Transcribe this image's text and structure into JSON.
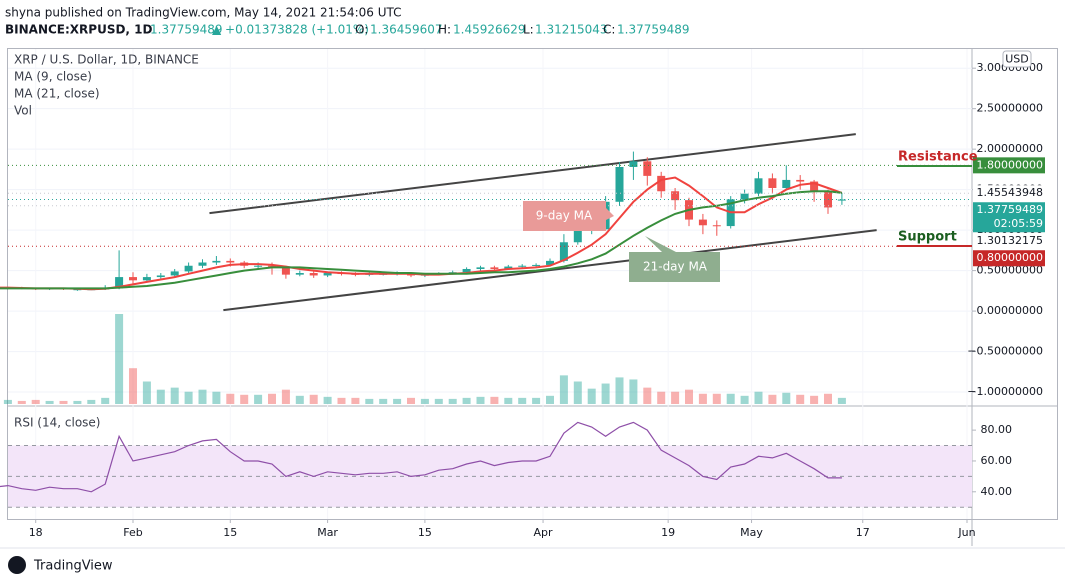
{
  "header": {
    "published": "shyna published on TradingView.com, May 14, 2021 21:54:06 UTC",
    "symbol": "BINANCE:XRPUSD, 1D",
    "price": "1.37759489",
    "change": "▲ +0.01373828 (+1.01%)",
    "ohlc": [
      {
        "label": "O:",
        "value": "1.36459607"
      },
      {
        "label": "H:",
        "value": "1.45926629"
      },
      {
        "label": "L:",
        "value": "1.31215043"
      },
      {
        "label": "C:",
        "value": "1.37759489"
      }
    ],
    "logo": "TradingView"
  },
  "chart_data": {
    "type": "candlestick",
    "title": "XRP / U.S. Dollar, 1D, BINANCE",
    "currency": "USD",
    "x": [
      "01-10",
      "01-12",
      "01-14",
      "01-16",
      "01-18",
      "01-20",
      "01-22",
      "01-24",
      "01-26",
      "01-28",
      "01-30",
      "02-01",
      "02-03",
      "02-05",
      "02-07",
      "02-09",
      "02-11",
      "02-13",
      "02-15",
      "02-17",
      "02-19",
      "02-21",
      "02-23",
      "02-25",
      "02-27",
      "03-01",
      "03-03",
      "03-05",
      "03-07",
      "03-09",
      "03-11",
      "03-13",
      "03-15",
      "03-17",
      "03-19",
      "03-21",
      "03-23",
      "03-25",
      "03-27",
      "03-29",
      "03-31",
      "04-02",
      "04-04",
      "04-06",
      "04-08",
      "04-10",
      "04-12",
      "04-14",
      "04-16",
      "04-18",
      "04-20",
      "04-22",
      "04-24",
      "04-26",
      "04-28",
      "04-30",
      "05-02",
      "05-04",
      "05-06",
      "05-08",
      "05-10",
      "05-12",
      "05-14"
    ],
    "open": [
      0.29,
      0.29,
      0.28,
      0.29,
      0.28,
      0.27,
      0.28,
      0.27,
      0.27,
      0.27,
      0.28,
      0.42,
      0.38,
      0.42,
      0.44,
      0.49,
      0.56,
      0.6,
      0.62,
      0.6,
      0.56,
      0.56,
      0.55,
      0.45,
      0.47,
      0.44,
      0.47,
      0.46,
      0.45,
      0.46,
      0.46,
      0.47,
      0.44,
      0.45,
      0.47,
      0.48,
      0.52,
      0.54,
      0.52,
      0.55,
      0.56,
      0.57,
      0.62,
      0.85,
      1.0,
      1.01,
      1.35,
      1.78,
      1.85,
      1.67,
      1.48,
      1.37,
      1.13,
      1.06,
      1.05,
      1.38,
      1.45,
      1.64,
      1.52,
      1.62,
      1.6,
      1.47,
      1.36459607
    ],
    "high": [
      0.3,
      0.3,
      0.3,
      0.3,
      0.29,
      0.29,
      0.29,
      0.28,
      0.29,
      0.32,
      0.75,
      0.48,
      0.46,
      0.47,
      0.52,
      0.6,
      0.64,
      0.68,
      0.65,
      0.62,
      0.6,
      0.6,
      0.56,
      0.5,
      0.49,
      0.49,
      0.49,
      0.48,
      0.48,
      0.48,
      0.49,
      0.48,
      0.47,
      0.48,
      0.5,
      0.54,
      0.56,
      0.56,
      0.57,
      0.58,
      0.59,
      0.65,
      0.95,
      1.05,
      1.1,
      1.42,
      1.84,
      1.97,
      1.9,
      1.72,
      1.52,
      1.4,
      1.2,
      1.12,
      1.42,
      1.5,
      1.72,
      1.7,
      1.8,
      1.68,
      1.62,
      1.5,
      1.45926629
    ],
    "low": [
      0.27,
      0.27,
      0.27,
      0.27,
      0.26,
      0.26,
      0.26,
      0.25,
      0.26,
      0.26,
      0.27,
      0.33,
      0.36,
      0.4,
      0.42,
      0.47,
      0.53,
      0.57,
      0.55,
      0.53,
      0.52,
      0.45,
      0.4,
      0.43,
      0.41,
      0.42,
      0.44,
      0.43,
      0.43,
      0.44,
      0.44,
      0.42,
      0.42,
      0.44,
      0.45,
      0.47,
      0.5,
      0.5,
      0.51,
      0.53,
      0.54,
      0.56,
      0.6,
      0.82,
      0.95,
      0.99,
      1.3,
      1.62,
      1.55,
      1.4,
      1.25,
      1.05,
      0.95,
      0.93,
      1.02,
      1.33,
      1.42,
      1.45,
      1.5,
      1.5,
      1.35,
      1.2,
      1.31215043
    ],
    "close": [
      0.29,
      0.28,
      0.29,
      0.28,
      0.27,
      0.28,
      0.27,
      0.27,
      0.27,
      0.28,
      0.42,
      0.38,
      0.42,
      0.44,
      0.49,
      0.56,
      0.6,
      0.62,
      0.6,
      0.56,
      0.56,
      0.55,
      0.45,
      0.47,
      0.44,
      0.47,
      0.46,
      0.45,
      0.46,
      0.46,
      0.47,
      0.44,
      0.45,
      0.47,
      0.48,
      0.52,
      0.54,
      0.52,
      0.55,
      0.56,
      0.57,
      0.62,
      0.85,
      1.0,
      1.01,
      1.35,
      1.78,
      1.85,
      1.67,
      1.48,
      1.37,
      1.13,
      1.06,
      1.05,
      1.38,
      1.45,
      1.64,
      1.52,
      1.62,
      1.6,
      1.47,
      1.28,
      1.37759489
    ],
    "up_color": "#26a69a",
    "down_color": "#ef5350",
    "series": [
      {
        "name": "MA (9, close)",
        "color": "#f0433f",
        "values": [
          0.29,
          0.29,
          0.29,
          0.285,
          0.28,
          0.28,
          0.28,
          0.275,
          0.27,
          0.275,
          0.3,
          0.33,
          0.36,
          0.39,
          0.42,
          0.46,
          0.5,
          0.54,
          0.57,
          0.58,
          0.58,
          0.57,
          0.55,
          0.52,
          0.5,
          0.48,
          0.47,
          0.46,
          0.46,
          0.46,
          0.46,
          0.46,
          0.45,
          0.45,
          0.46,
          0.47,
          0.49,
          0.5,
          0.52,
          0.53,
          0.54,
          0.56,
          0.63,
          0.72,
          0.82,
          0.95,
          1.15,
          1.35,
          1.5,
          1.62,
          1.65,
          1.55,
          1.42,
          1.28,
          1.22,
          1.22,
          1.32,
          1.4,
          1.5,
          1.56,
          1.58,
          1.52,
          1.46
        ]
      },
      {
        "name": "MA (21, close)",
        "color": "#388e3c",
        "values": [
          0.28,
          0.28,
          0.28,
          0.28,
          0.28,
          0.28,
          0.28,
          0.28,
          0.28,
          0.28,
          0.29,
          0.3,
          0.31,
          0.33,
          0.35,
          0.38,
          0.41,
          0.44,
          0.47,
          0.5,
          0.52,
          0.54,
          0.54,
          0.54,
          0.53,
          0.52,
          0.51,
          0.5,
          0.49,
          0.48,
          0.47,
          0.47,
          0.46,
          0.46,
          0.46,
          0.46,
          0.47,
          0.48,
          0.48,
          0.49,
          0.5,
          0.52,
          0.55,
          0.59,
          0.64,
          0.71,
          0.82,
          0.93,
          1.03,
          1.12,
          1.2,
          1.25,
          1.28,
          1.3,
          1.33,
          1.37,
          1.4,
          1.42,
          1.45,
          1.47,
          1.48,
          1.48,
          1.46
        ]
      }
    ],
    "volume": {
      "name": "Vol",
      "values": [
        3,
        3,
        4,
        3,
        4,
        3,
        3,
        3,
        4,
        6,
        88,
        35,
        22,
        14,
        16,
        12,
        14,
        12,
        10,
        9,
        9,
        10,
        14,
        8,
        9,
        7,
        6,
        6,
        5,
        5,
        5,
        6,
        5,
        5,
        5,
        6,
        7,
        7,
        6,
        6,
        6,
        8,
        28,
        22,
        15,
        20,
        26,
        24,
        16,
        12,
        12,
        14,
        10,
        10,
        10,
        8,
        12,
        9,
        11,
        9,
        8,
        10,
        6
      ]
    },
    "ylim": [
      -1.16,
      3.2
    ],
    "yticks": [
      {
        "value": -1,
        "label": "−1.00000000"
      },
      {
        "value": -0.5,
        "label": "−0.50000000"
      },
      {
        "value": 0,
        "label": "0.00000000"
      },
      {
        "value": 0.5,
        "label": "0.50000000"
      },
      {
        "value": 1,
        "label": "1.00000000"
      },
      {
        "value": 1.5,
        "label": "1.50000000"
      },
      {
        "value": 2,
        "label": "2.00000000"
      },
      {
        "value": 2.5,
        "label": "2.50000000"
      },
      {
        "value": 3,
        "label": "3.00000000"
      }
    ],
    "grid": true,
    "xticks": [
      {
        "value": "01-18",
        "label": "18"
      },
      {
        "value": "02-01",
        "label": "Feb"
      },
      {
        "value": "02-15",
        "label": "15"
      },
      {
        "value": "03-01",
        "label": "Mar"
      },
      {
        "value": "03-15",
        "label": "15"
      },
      {
        "value": "04-01",
        "label": "Apr"
      },
      {
        "value": "04-19",
        "label": "19"
      },
      {
        "value": "05-01",
        "label": "May"
      },
      {
        "value": "05-17",
        "label": "17"
      },
      {
        "value": "06-01",
        "label": "Jun"
      }
    ],
    "price_labels": [
      {
        "value": 1.8,
        "label": "1.80000000",
        "color": "#388e3c"
      },
      {
        "value": 1.45543948,
        "label": "1.45543948",
        "color": "#ffffff"
      },
      {
        "value": 1.37759489,
        "label": "1.37759489",
        "color": "#26a69a",
        "countdown": "02:05:59"
      },
      {
        "value": 1.30132175,
        "label": "1.30132175",
        "color": "#ffffff"
      },
      {
        "value": 0.8,
        "label": "0.80000000",
        "color": "#c62828"
      }
    ],
    "trend_lines": [
      {
        "color": "#444",
        "x": [
          "02-12",
          "05-16"
        ],
        "y": [
          1.21,
          2.185
        ]
      },
      {
        "color": "#444",
        "x": [
          "02-14",
          "05-19"
        ],
        "y": [
          0.012,
          1.0
        ]
      }
    ],
    "annotations": {
      "ma9": "9-day MA",
      "ma21": "21-day MA",
      "resistance": "Resistance",
      "support": "Support"
    },
    "rsi": {
      "name": "RSI (14, close)",
      "color": "#8e4fa8",
      "ylim": [
        23,
        95
      ],
      "band": [
        30,
        70
      ],
      "mid": 50,
      "yticks": [
        {
          "value": 40,
          "label": "40.00"
        },
        {
          "value": 60,
          "label": "60.00"
        },
        {
          "value": 80,
          "label": "80.00"
        }
      ],
      "values": [
        44,
        43,
        44,
        42,
        41,
        43,
        42,
        42,
        40,
        45,
        76,
        60,
        62,
        64,
        66,
        70,
        73,
        74,
        66,
        60,
        60,
        58,
        50,
        53,
        50,
        53,
        52,
        51,
        52,
        52,
        53,
        50,
        51,
        54,
        55,
        58,
        60,
        57,
        59,
        60,
        60,
        63,
        78,
        85,
        82,
        76,
        82,
        85,
        80,
        67,
        62,
        57,
        50,
        48,
        56,
        58,
        63,
        62,
        65,
        60,
        55,
        49,
        49
      ]
    }
  }
}
